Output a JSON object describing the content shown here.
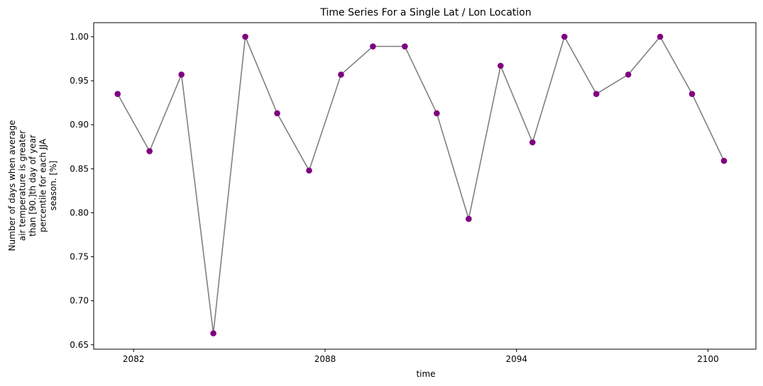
{
  "chart_data": {
    "type": "line",
    "title": "Time Series For a Single Lat / Lon Location",
    "xlabel": "time",
    "ylabel_lines": [
      "Number of days when average",
      "air temperature is greater",
      "than [90.]th day of year",
      "percentile for each JJA",
      "season. [%]"
    ],
    "x_ticks": [
      2082,
      2088,
      2094,
      2100
    ],
    "y_ticks": [
      "0.65",
      "0.70",
      "0.75",
      "0.80",
      "0.85",
      "0.90",
      "0.95",
      "1.00"
    ],
    "xlim": [
      2080.75,
      2101.5
    ],
    "ylim": [
      0.645,
      1.016
    ],
    "grid": false,
    "line_color": "#808080",
    "marker_color": "#800080",
    "series": [
      {
        "x": [
          2081.5,
          2082.5,
          2083.5,
          2084.5,
          2085.5,
          2086.5,
          2087.5,
          2088.5,
          2089.5,
          2090.5,
          2091.5,
          2092.5,
          2093.5,
          2094.5,
          2095.5,
          2096.5,
          2097.5,
          2098.5,
          2099.5,
          2100.5
        ],
        "values": [
          0.935,
          0.87,
          0.957,
          0.663,
          1.0,
          0.913,
          0.848,
          0.957,
          0.989,
          0.989,
          0.913,
          0.793,
          0.967,
          0.88,
          1.0,
          0.935,
          0.957,
          1.0,
          0.935,
          0.859
        ]
      }
    ]
  }
}
